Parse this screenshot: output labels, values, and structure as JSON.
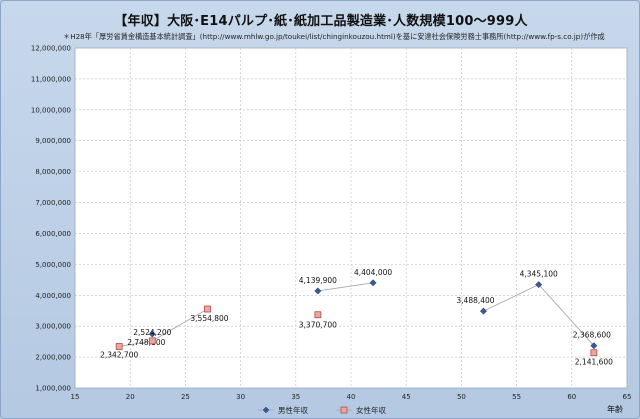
{
  "chart_data": {
    "type": "scatter",
    "title": "【年収】大阪･E14パルプ･紙･紙加工品製造業･人数規模100～999人",
    "subtitle": "＊H28年「厚労省賃金構造基本統計調査」(http://www.mhlw.go.jp/toukei/list/chinginkouzou.html)を基に安達社会保険労務士事務所(http://www.fp-s.co.jp)が作成",
    "xlabel": "年齢",
    "ylabel": "",
    "xlim": [
      15,
      65
    ],
    "ylim": [
      1000000,
      12000000
    ],
    "x_ticks": [
      15,
      20,
      25,
      30,
      35,
      40,
      45,
      50,
      55,
      60,
      65
    ],
    "y_ticks": [
      1000000,
      2000000,
      3000000,
      4000000,
      5000000,
      6000000,
      7000000,
      8000000,
      9000000,
      10000000,
      11000000,
      12000000
    ],
    "y_tick_labels": [
      "1,000,000",
      "2,000,000",
      "3,000,000",
      "4,000,000",
      "5,000,000",
      "6,000,000",
      "7,000,000",
      "8,000,000",
      "9,000,000",
      "10,000,000",
      "11,000,000",
      "12,000,000"
    ],
    "grid": true,
    "legend_position": "bottom",
    "series": [
      {
        "name": "男性年収",
        "color": "#3a5a96",
        "marker": "diamond",
        "groups": [
          [
            {
              "x": 22,
              "y": 2748100,
              "label": "2,748,100"
            }
          ],
          [
            {
              "x": 37,
              "y": 4139900,
              "label": "4,139,900"
            },
            {
              "x": 42,
              "y": 4404000,
              "label": "4,404,000"
            }
          ],
          [
            {
              "x": 52,
              "y": 3488400,
              "label": "3,488,400"
            },
            {
              "x": 57,
              "y": 4345100,
              "label": "4,345,100"
            },
            {
              "x": 62,
              "y": 2368600,
              "label": "2,368,600"
            }
          ]
        ]
      },
      {
        "name": "女性年収",
        "color": "#e8a8a0",
        "stroke": "#b84a44",
        "marker": "square",
        "groups": [
          [
            {
              "x": 19,
              "y": 2342700,
              "label": "2,342,700"
            },
            {
              "x": 22,
              "y": 2524200,
              "label": "2,524,200"
            },
            {
              "x": 27,
              "y": 3554800,
              "label": "3,554,800"
            }
          ],
          [
            {
              "x": 37,
              "y": 3370700,
              "label": "3,370,700"
            }
          ],
          [
            {
              "x": 62,
              "y": 2141600,
              "label": "2,141,600"
            }
          ]
        ]
      }
    ]
  }
}
